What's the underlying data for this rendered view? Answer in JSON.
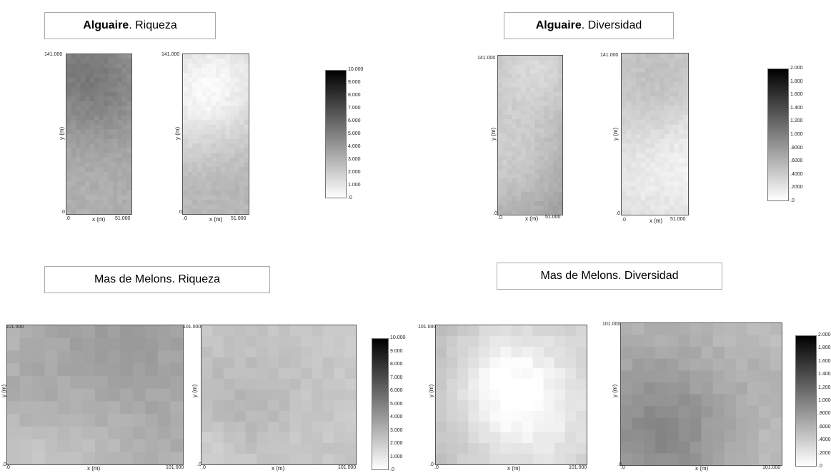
{
  "titles": {
    "t1": {
      "bold": "Alguaire",
      "rest": ". Riqueza"
    },
    "t2": {
      "bold": "Alguaire",
      "rest": ". Diversidad"
    },
    "t3": {
      "bold": "",
      "rest": "Mas de Melons. Riqueza"
    },
    "t4": {
      "bold": "",
      "rest": "Mas de Melons. Diversidad"
    }
  },
  "colorbars": {
    "riqueza": {
      "labels": [
        "10.000",
        "9.000",
        "8.000",
        "7.000",
        "6.000",
        "5.000",
        "4.000",
        "3.000",
        "2.000",
        "1.000",
        ".0"
      ]
    },
    "diversidad": {
      "labels": [
        "2.000",
        "1.800",
        "1.600",
        "1.400",
        "1.200",
        "1.000",
        ".8000",
        ".6000",
        ".4000",
        ".2000",
        ".0"
      ]
    }
  },
  "axis_text": {
    "xlabel": "x (m)",
    "ylabel": "y (m)",
    "origin_x": ".0",
    "origin_y": ".0",
    "alguaire_xmax": "51.000",
    "alguaire_ymax": "141.000",
    "melons_xmax": "101.000",
    "melons_ymax": "101.000"
  },
  "chart_data": [
    {
      "type": "heatmap",
      "title": "Alguaire. Riqueza",
      "xlabel": "x (m)",
      "ylabel": "y (m)",
      "xlim": [
        0,
        51
      ],
      "ylim": [
        0,
        141
      ],
      "value_range": [
        0,
        10
      ],
      "colormap": "white-to-black",
      "mean_level": 0.42
    },
    {
      "type": "heatmap",
      "title": "Alguaire. Riqueza",
      "xlabel": "x (m)",
      "ylabel": "y (m)",
      "xlim": [
        0,
        51
      ],
      "ylim": [
        0,
        141
      ],
      "value_range": [
        0,
        10
      ],
      "colormap": "white-to-black",
      "mean_level": 0.3
    },
    {
      "type": "heatmap",
      "title": "Alguaire. Diversidad",
      "xlabel": "x (m)",
      "ylabel": "y (m)",
      "xlim": [
        0,
        51
      ],
      "ylim": [
        0,
        141
      ],
      "value_range": [
        0,
        2
      ],
      "colormap": "white-to-black",
      "mean_level": 0.5
    },
    {
      "type": "heatmap",
      "title": "Alguaire. Diversidad",
      "xlabel": "x (m)",
      "ylabel": "y (m)",
      "xlim": [
        0,
        51
      ],
      "ylim": [
        0,
        141
      ],
      "value_range": [
        0,
        2
      ],
      "colormap": "white-to-black",
      "mean_level": 0.2
    },
    {
      "type": "heatmap",
      "title": "Mas de Melons. Riqueza",
      "xlabel": "x (m)",
      "ylabel": "y (m)",
      "xlim": [
        0,
        101
      ],
      "ylim": [
        0,
        101
      ],
      "value_range": [
        0,
        10
      ],
      "colormap": "white-to-black",
      "mean_level": 0.35
    },
    {
      "type": "heatmap",
      "title": "Mas de Melons. Riqueza",
      "xlabel": "x (m)",
      "ylabel": "y (m)",
      "xlim": [
        0,
        101
      ],
      "ylim": [
        0,
        101
      ],
      "value_range": [
        0,
        10
      ],
      "colormap": "white-to-black",
      "mean_level": 0.28
    },
    {
      "type": "heatmap",
      "title": "Mas de Melons. Diversidad",
      "xlabel": "x (m)",
      "ylabel": "y (m)",
      "xlim": [
        0,
        101
      ],
      "ylim": [
        0,
        101
      ],
      "value_range": [
        0,
        2
      ],
      "colormap": "white-to-black",
      "mean_level": 0.38
    },
    {
      "type": "heatmap",
      "title": "Mas de Melons. Diversidad",
      "xlabel": "x (m)",
      "ylabel": "y (m)",
      "xlim": [
        0,
        101
      ],
      "ylim": [
        0,
        101
      ],
      "value_range": [
        0,
        2
      ],
      "colormap": "white-to-black",
      "mean_level": 0.32
    }
  ]
}
